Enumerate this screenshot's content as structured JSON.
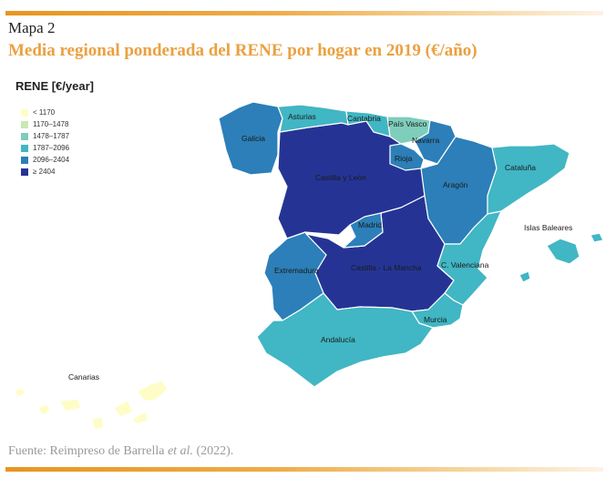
{
  "header": {
    "fig_label": "Mapa 2",
    "title": "Media regional ponderada del RENE por hogar en 2019 (€/año)"
  },
  "legend": {
    "title": "RENE [€/year]",
    "items": [
      {
        "label": "< 1170",
        "color": "#fefdc8"
      },
      {
        "label": "1170–1478",
        "color": "#c7e9b4"
      },
      {
        "label": "1478–1787",
        "color": "#7fcdbb"
      },
      {
        "label": "1787–2096",
        "color": "#41b6c4"
      },
      {
        "label": "2096–2404",
        "color": "#2c7fb8"
      },
      {
        "label": "≥ 2404",
        "color": "#253494"
      }
    ]
  },
  "regions": [
    {
      "name": "Galicia",
      "class": "2096–2404"
    },
    {
      "name": "Asturias",
      "class": "1787–2096"
    },
    {
      "name": "Cantabria",
      "class": "1787–2096"
    },
    {
      "name": "País Vasco",
      "class": "1478–1787"
    },
    {
      "name": "Navarra",
      "class": "2096–2404"
    },
    {
      "name": "Rioja",
      "class": "2096–2404"
    },
    {
      "name": "Castilla y León",
      "class": "≥ 2404"
    },
    {
      "name": "Aragón",
      "class": "2096–2404"
    },
    {
      "name": "Cataluña",
      "class": "1787–2096"
    },
    {
      "name": "Madrid",
      "class": "2096–2404"
    },
    {
      "name": "Castilla - La Mancha",
      "class": "≥ 2404"
    },
    {
      "name": "Extremadura",
      "class": "2096–2404"
    },
    {
      "name": "C. Valenciana",
      "class": "1787–2096"
    },
    {
      "name": "Islas Baleares",
      "class": "1787–2096"
    },
    {
      "name": "Murcia",
      "class": "1787–2096"
    },
    {
      "name": "Andalucía",
      "class": "1787–2096"
    },
    {
      "name": "Canarias",
      "class": "< 1170"
    }
  ],
  "footer": {
    "source_prefix": "Fuente: Reimpreso de Barrella ",
    "source_italic": "et al.",
    "source_suffix": " (2022)."
  }
}
